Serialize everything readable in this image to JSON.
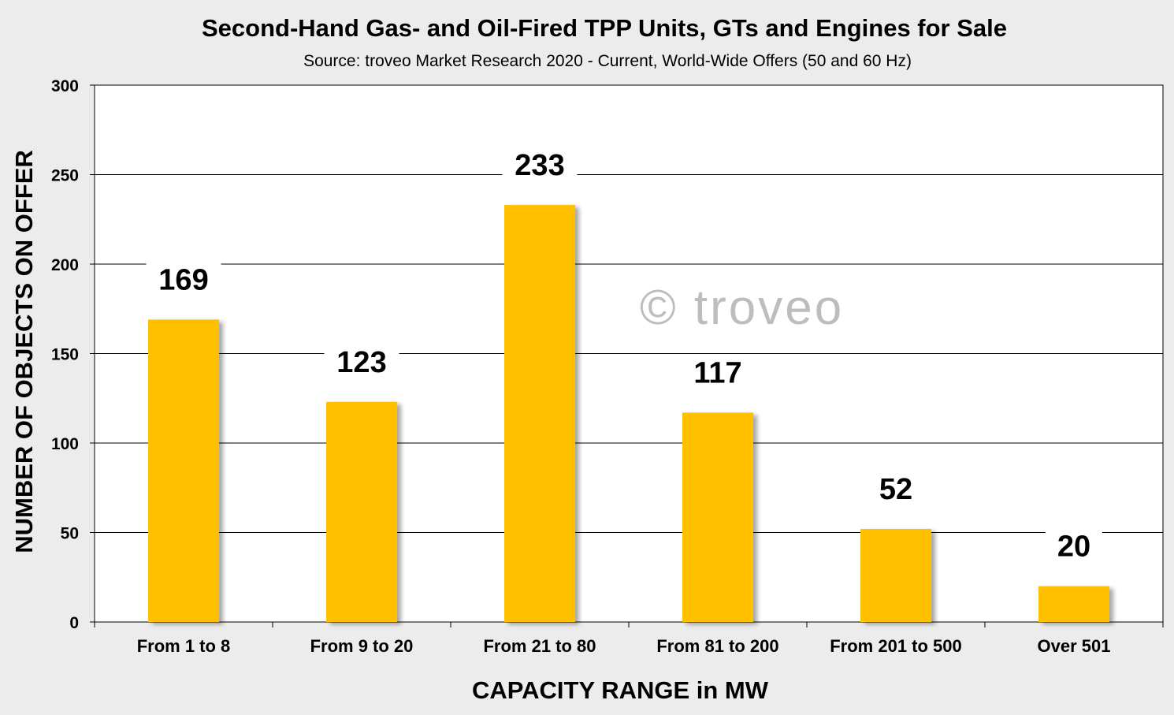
{
  "chart_data": {
    "type": "bar",
    "title": "Second-Hand  Gas- and Oil-Fired TPP Units, GTs and Engines for Sale",
    "subtitle": "Source: troveo Market Research 2020 - Current, World-Wide Offers (50 and 60 Hz)",
    "xlabel": "CAPACITY RANGE in MW",
    "ylabel": "NUMBER OF OBJECTS ON OFFER",
    "categories": [
      "From 1 to 8",
      "From 9 to 20",
      "From 21 to 80",
      "From 81 to 200",
      "From 201 to 500",
      "Over 501"
    ],
    "values": [
      169,
      123,
      233,
      117,
      52,
      20
    ],
    "data_labels": [
      "169",
      "123",
      "233",
      "117",
      "52",
      "20"
    ],
    "yticks": [
      "0",
      "50",
      "100",
      "150",
      "200",
      "250",
      "300"
    ],
    "ylim": [
      0,
      300
    ],
    "grid": "horizontal",
    "legend": "none",
    "watermark": "© troveo",
    "colors": {
      "bar": "#ffc000",
      "background": "#ececec",
      "plot_background": "#ffffff",
      "gridline": "#000000"
    }
  }
}
